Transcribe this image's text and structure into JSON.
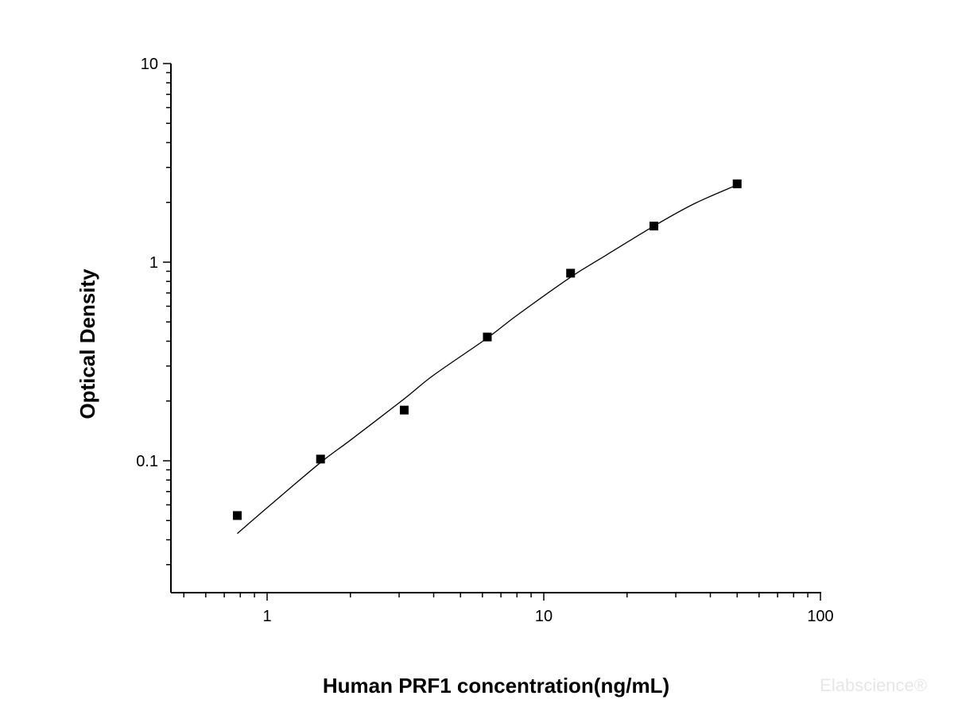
{
  "chart_data": {
    "type": "scatter",
    "xlabel": "Human PRF1 concentration(ng/mL)",
    "ylabel": "Optical Density",
    "xscale": "log",
    "yscale": "log",
    "xlim": [
      0.5,
      100
    ],
    "ylim": [
      0.03,
      10
    ],
    "x_ticks": [
      {
        "value": 1,
        "label": "1"
      },
      {
        "value": 10,
        "label": "10"
      },
      {
        "value": 100,
        "label": "100"
      }
    ],
    "y_ticks": [
      {
        "value": 0.1,
        "label": "0.1"
      },
      {
        "value": 1,
        "label": "1"
      },
      {
        "value": 10,
        "label": "10"
      }
    ],
    "grid": false,
    "legend": "none",
    "series": [
      {
        "marker": "square",
        "color": "#000000",
        "x": [
          0.78,
          1.56,
          3.13,
          6.25,
          12.5,
          25,
          50
        ],
        "y": [
          0.053,
          0.102,
          0.18,
          0.42,
          0.88,
          1.52,
          2.48
        ]
      }
    ],
    "fit_curve": {
      "color": "#000000",
      "x": [
        0.78,
        1.0,
        1.56,
        2.0,
        3.13,
        4.0,
        6.25,
        8.0,
        12.5,
        16.0,
        25.0,
        35.0,
        50.0
      ],
      "y": [
        0.043,
        0.058,
        0.098,
        0.127,
        0.205,
        0.27,
        0.415,
        0.54,
        0.84,
        1.04,
        1.52,
        1.97,
        2.45
      ]
    }
  },
  "watermark": "Elabscience®",
  "colors": {
    "axis": "#000000",
    "marker": "#000000",
    "watermark": "#e6e6e6"
  }
}
